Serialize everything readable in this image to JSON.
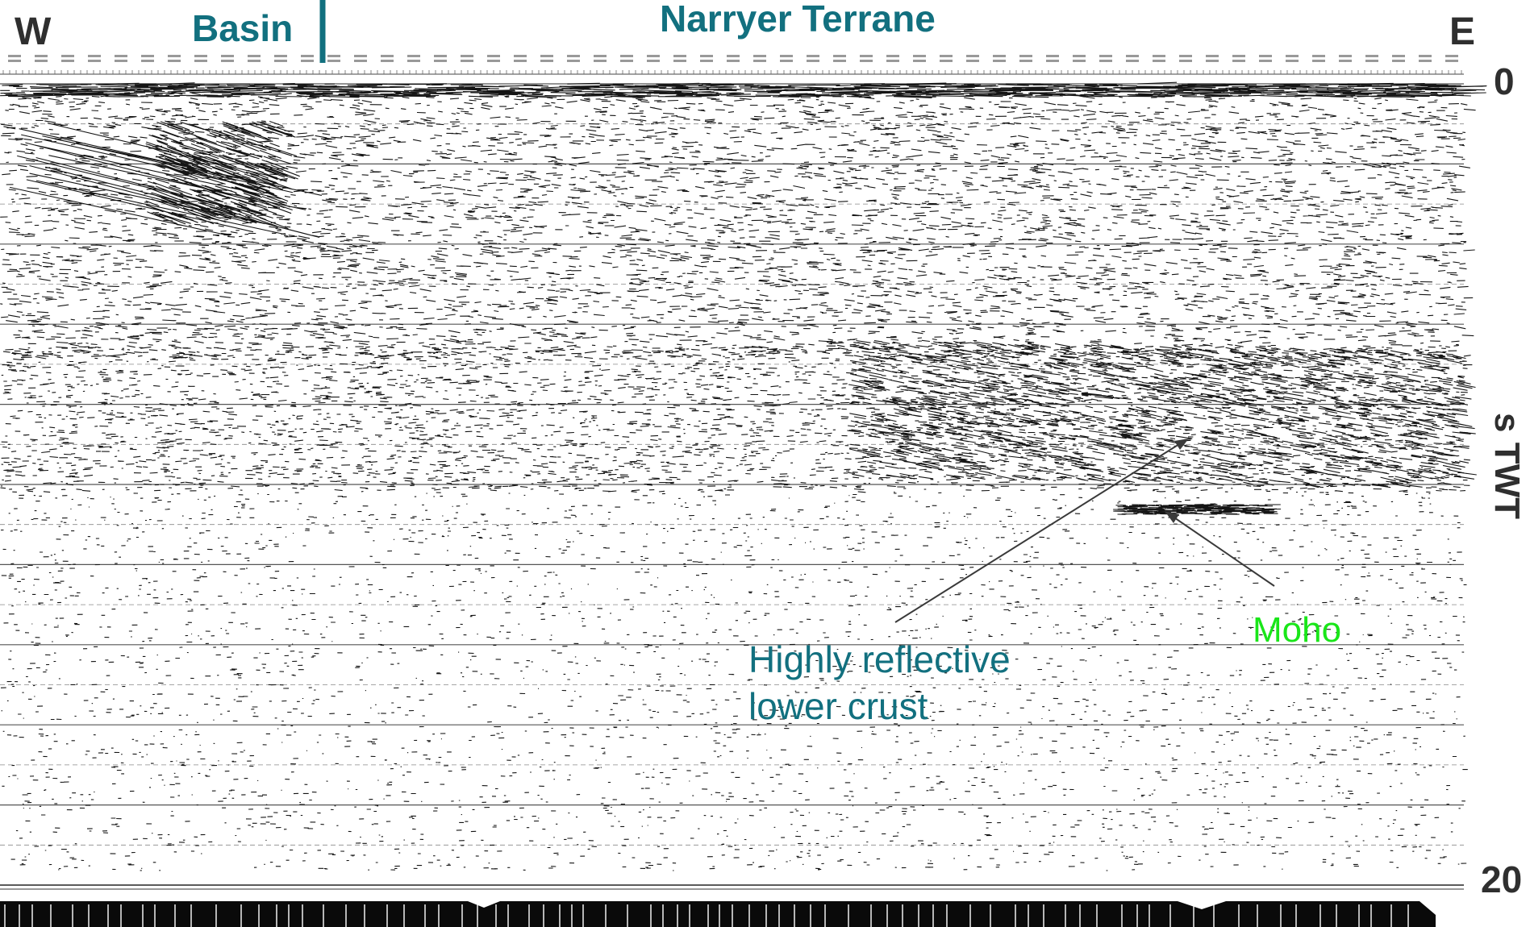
{
  "header": {
    "west_label": "W",
    "east_label": "E",
    "basin_label": "Basin",
    "terrane_label": "Narryer Terrane"
  },
  "annotations": {
    "lower_crust_line1": "Highly reflective",
    "lower_crust_line2": "lower crust",
    "moho_label": "Moho"
  },
  "axis": {
    "title": "s TWT",
    "top_value": "0",
    "bottom_value": "20"
  },
  "colors": {
    "terrane_text": "#12707f",
    "moho_text": "#19e619",
    "axis_text": "#2f2f2f"
  }
}
